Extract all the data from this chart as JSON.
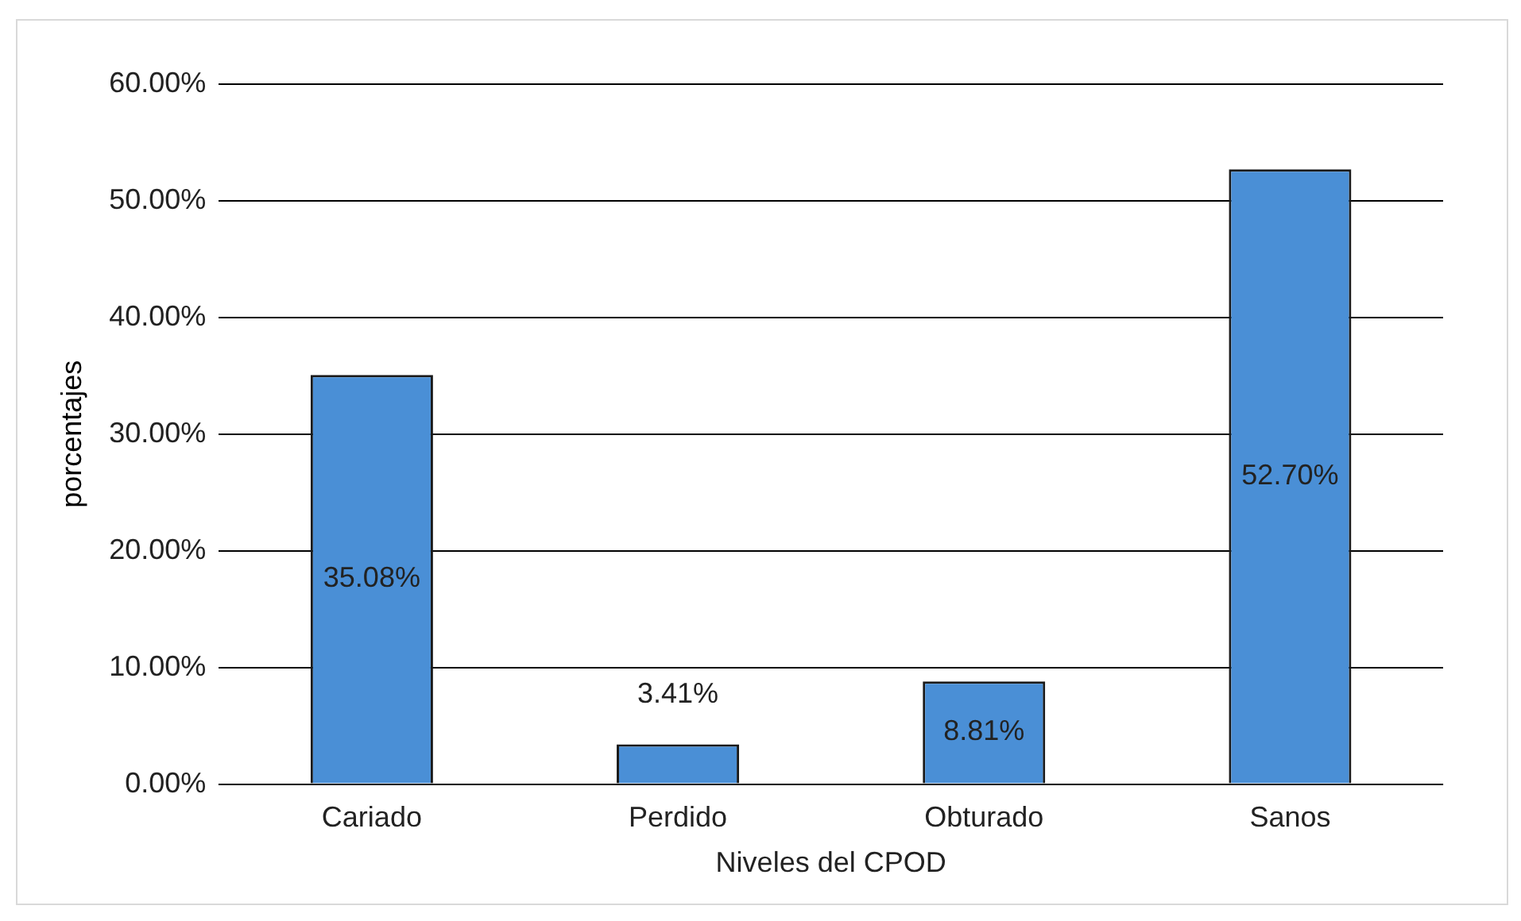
{
  "chart_data": {
    "type": "bar",
    "xlabel": "Niveles del CPOD",
    "ylabel": "porcentajes",
    "categories": [
      "Cariado",
      "Perdido",
      "Obturado",
      "Sanos"
    ],
    "values": [
      35.08,
      3.41,
      8.81,
      52.7
    ],
    "value_labels": [
      "35.08%",
      "3.41%",
      "8.81%",
      "52.70%"
    ],
    "color": "#4a8fd6",
    "ylim": [
      0,
      60
    ],
    "yticks": [
      {
        "value": 0,
        "label": "0.00%"
      },
      {
        "value": 10,
        "label": "10.00%"
      },
      {
        "value": 20,
        "label": "20.00%"
      },
      {
        "value": 30,
        "label": "30.00%"
      },
      {
        "value": 40,
        "label": "40.00%"
      },
      {
        "value": 50,
        "label": "50.00%"
      },
      {
        "value": 60,
        "label": "60.00%"
      }
    ],
    "grid": "y",
    "legend": false
  }
}
